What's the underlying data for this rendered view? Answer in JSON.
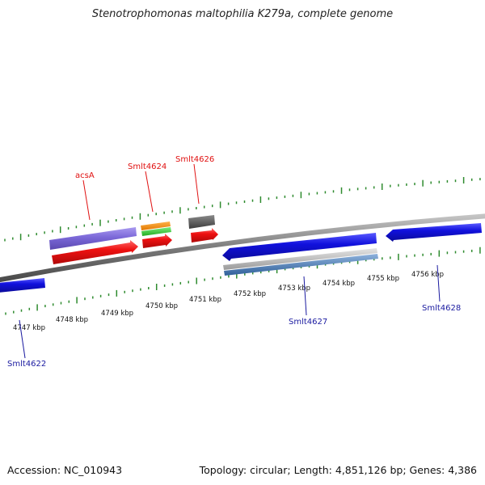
{
  "title": "Stenotrophomonas maltophilia K279a, complete genome",
  "footer": {
    "accession": "Accession: NC_010943",
    "stats": "Topology: circular; Length: 4,851,126 bp; Genes: 4,386"
  },
  "colors": {
    "backbone": "#8c8c8c",
    "tick_green": "#2e8b2e",
    "label_red": "#e01010",
    "label_blue": "#1a1aa0",
    "gene_blue": "#1111dd",
    "gene_red": "#ee1111",
    "gene_purple": "#7b68d8",
    "gene_orange": "#f08a0a",
    "gene_green": "#33cc33",
    "gene_gray": "#555555",
    "gene_light_gray": "#b5b5b5",
    "gene_steel_blue": "#4a7eb8"
  },
  "scale": {
    "ticks": [
      {
        "label": "4747 kbp"
      },
      {
        "label": "4748 kbp"
      },
      {
        "label": "4749 kbp"
      },
      {
        "label": "4750 kbp"
      },
      {
        "label": "4751 kbp"
      },
      {
        "label": "4752 kbp"
      },
      {
        "label": "4753 kbp"
      },
      {
        "label": "4754 kbp"
      },
      {
        "label": "4755 kbp"
      },
      {
        "label": "4756 kbp"
      }
    ]
  },
  "gene_labels": [
    {
      "text": "acsA",
      "color": "label_red"
    },
    {
      "text": "Smlt4624",
      "color": "label_red"
    },
    {
      "text": "Smlt4626",
      "color": "label_red"
    },
    {
      "text": "Smlt4622",
      "color": "label_blue"
    },
    {
      "text": "Smlt4627",
      "color": "label_blue"
    },
    {
      "text": "Smlt4628",
      "color": "label_blue"
    }
  ]
}
